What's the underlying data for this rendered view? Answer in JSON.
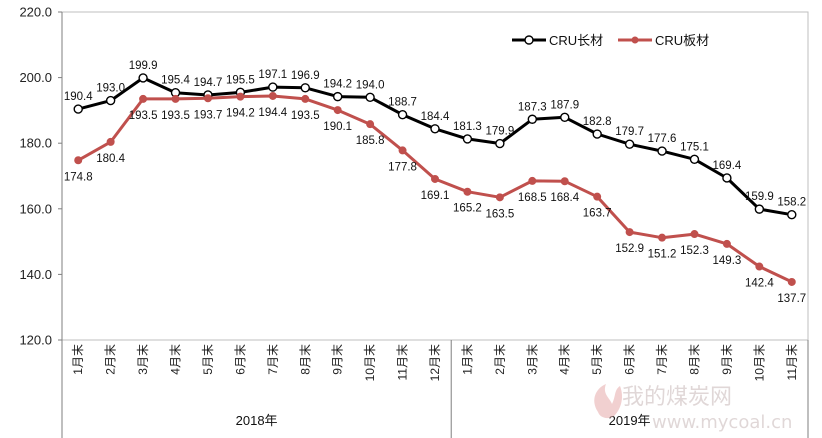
{
  "chart_data": {
    "type": "line",
    "categories": [
      "1月末",
      "2月末",
      "3月末",
      "4月末",
      "5月末",
      "6月末",
      "7月末",
      "8月末",
      "9月末",
      "10月末",
      "11月末",
      "12月末",
      "1月末",
      "2月末",
      "3月末",
      "4月末",
      "5月末",
      "6月末",
      "7月末",
      "8月末",
      "9月末",
      "10月末",
      "11月末"
    ],
    "groups": [
      {
        "label": "2018年",
        "count": 12
      },
      {
        "label": "2019年",
        "count": 11
      }
    ],
    "series": [
      {
        "name": "CRU长材",
        "color": "#000000",
        "values": [
          190.4,
          193.0,
          199.9,
          195.4,
          194.7,
          195.5,
          197.1,
          196.9,
          194.2,
          194.0,
          188.7,
          184.4,
          181.3,
          179.9,
          187.3,
          187.9,
          182.8,
          179.7,
          177.6,
          175.1,
          169.4,
          159.9,
          158.2
        ]
      },
      {
        "name": "CRU板材",
        "color": "#c0504d",
        "values": [
          174.8,
          180.4,
          193.5,
          193.5,
          193.7,
          194.2,
          194.4,
          193.5,
          190.1,
          185.8,
          177.8,
          169.1,
          165.2,
          163.5,
          168.5,
          168.4,
          163.7,
          152.9,
          151.2,
          152.3,
          149.3,
          142.4,
          137.7
        ]
      }
    ],
    "ylim": [
      120,
      220
    ],
    "yticks": [
      "120.0",
      "140.0",
      "160.0",
      "180.0",
      "200.0",
      "220.0"
    ],
    "grid": false,
    "legend": "top-right",
    "title": "",
    "xlabel": "",
    "ylabel": ""
  },
  "watermark": {
    "text": "我的煤炭网",
    "url": "www.mycoal.cn"
  }
}
